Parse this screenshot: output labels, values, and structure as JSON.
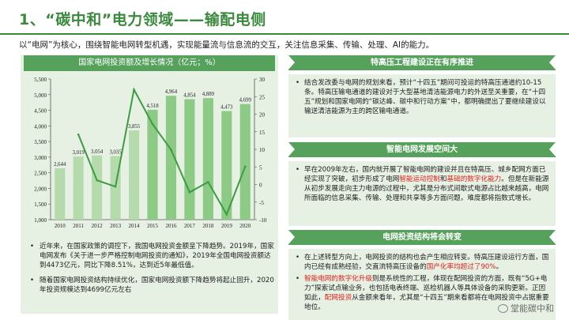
{
  "title": "1、“碳中和”电力领域——输配电侧",
  "intro": "以“电网”为核心，围绕智能电网转型机遇，实现能量流与信息流的交互，关注信息采集、传输、处理、AI的能力。",
  "chart_data": {
    "type": "bar",
    "title": "国家电网投资额及增长情况（亿元；%）",
    "categories": [
      "2010",
      "2011",
      "2012",
      "2013",
      "2014",
      "2015",
      "2016",
      "2017",
      "2018",
      "2019",
      "2020"
    ],
    "series": [
      {
        "values": [
          2644,
          3019,
          3054,
          3035,
          3855,
          4518,
          4964,
          4854,
          4889,
          4473,
          4699
        ]
      },
      {
        "values": [
          null,
          14.2,
          1.2,
          -0.6,
          27.0,
          17.2,
          9.9,
          -2.2,
          0.7,
          -8.5,
          5.1
        ]
      }
    ],
    "data_labels": [
      "2,644",
      "3,019",
      "3,054",
      "3,035",
      "3,855",
      "4,518",
      "4,964",
      "4,854",
      "4,889",
      "4,473",
      "4,699"
    ],
    "yticks_left": [
      "1,000",
      "1,500",
      "2,000",
      "2,500",
      "3,000",
      "3,500",
      "4,000",
      "4,500",
      "5,000",
      "5,500"
    ],
    "yticks_right": [
      "-10",
      "-5",
      "0",
      "5",
      "10",
      "15",
      "20",
      "25",
      "30"
    ],
    "ylim_left": [
      1000,
      5500
    ],
    "ylim_right": [
      -10,
      30
    ],
    "colors": {
      "bars": "#b5dbac",
      "bars_high": "#8cca85",
      "line": "#3b9c41",
      "axis": "#555555",
      "label": "#222222"
    }
  },
  "left_notes": [
    "近年来，在国家政策的调控下，我国电网投资金额呈下降趋势。2019年，国家电网发布《关于进一步严格控制电网投资的通知》，2019年全国电网投资额达到4473亿元，同比下降8.51%，达到近5年最低值。",
    "随着国家电网投资结构持续优化，国家电网投资额下降趋势将起止回升，2020年投资规模达到4699亿元左右"
  ],
  "sections": [
    {
      "heading": "特高压工程建设正在有序推进",
      "body": "结合发改委与电网的规划来看，预计“十四五”期间可投运的特高压通道约10-15条。特高压输电通道的建设对于大型基地清洁能源电力的外送至关重要，在“十四五”规划和国家电网的“碳达峰、碳中和行动方案”中，都明确提出了要继续建设以输送清洁能源为主的跨区输电通道。"
    },
    {
      "heading": "智能电网发展空间大",
      "body_before": "早在2009年左右，国内就开展了智能电网的建设并且在特高压、城乡配网方面已经实现了突破，初步形成了电网",
      "body_hl1": "智能运动控制",
      "body_mid": "和",
      "body_hl2": "基础的数字化能力",
      "body_after": "。但是在新能源从初步发展走向主力电源的过程中，尤其是分布式间歇式电源占比越来越高，电网所面临的信息采集、传输、处理和共享等多方面问题，难度都将指数式增长。"
    },
    {
      "heading": "电网投资结构将会转变",
      "b1_before": "在上述转型方向上，电网投资的结构也会产生相应转变。特高压建设运行方面，国内已经有成熟经验，交直流特高压设备的",
      "b1_hl": "国产化率均超过了90%",
      "b1_after": "。",
      "b2_hl1": "智能电网的数字化升级",
      "b2_before": "则是系统性的工程，体现在配网投资的方面，既有“5G+电力”探索试点输业务，也包括电表终端、巡检机器人等具体设备的采购更新。正因如此，",
      "b2_hl2": "配网投资",
      "b2_after": "从金额来看年，尤其是“十四五”期来看都将在电网投资中占据重要地位。"
    }
  ],
  "watermark": "堂能碳中和"
}
